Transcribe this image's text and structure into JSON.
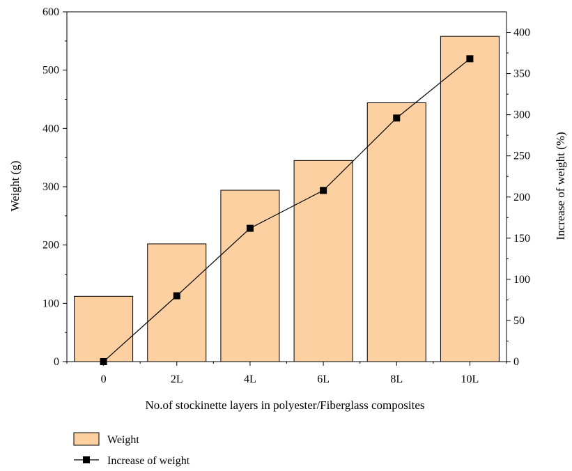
{
  "chart_data": {
    "type": "bar",
    "categories": [
      "0",
      "2L",
      "4L",
      "6L",
      "8L",
      "10L"
    ],
    "series": [
      {
        "name": "Weight",
        "type": "bar",
        "axis": "left",
        "values": [
          112,
          202,
          294,
          345,
          444,
          558
        ],
        "color": "#fcd0a0"
      },
      {
        "name": "Increase of weight",
        "type": "line",
        "axis": "right",
        "marker": "square",
        "values": [
          0,
          80,
          162,
          208,
          296,
          368
        ],
        "color": "#000000"
      }
    ],
    "xlabel": "No.of stockinette layers in polyester/Fiberglass composites",
    "ylabel": "Weight (g)",
    "y2label": "Increase of weight (%)",
    "ylim": [
      0,
      600
    ],
    "y2lim": [
      0,
      425
    ],
    "yticks": [
      "0",
      "100",
      "200",
      "300",
      "400",
      "500",
      "600"
    ],
    "y2ticks": [
      "0",
      "50",
      "100",
      "150",
      "200",
      "250",
      "300",
      "350",
      "400"
    ],
    "grid": false,
    "legend_position": "bottom-left",
    "legend": [
      "Weight",
      "Increase of weight"
    ]
  }
}
